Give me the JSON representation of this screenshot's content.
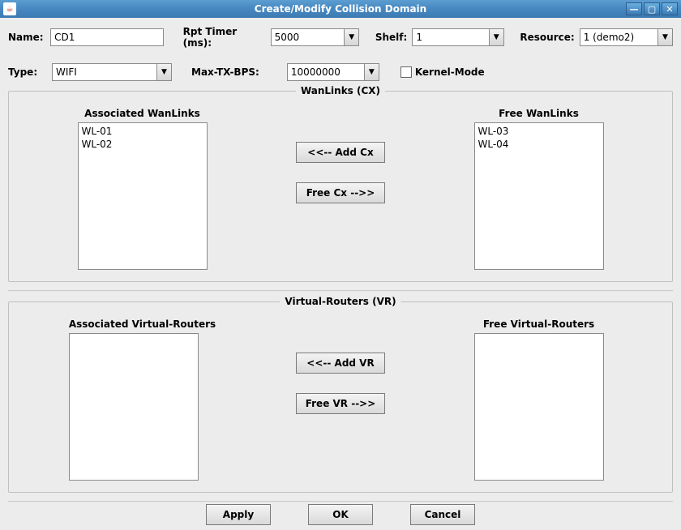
{
  "window": {
    "title": "Create/Modify Collision Domain"
  },
  "form": {
    "name_label": "Name:",
    "name_value": "CD1",
    "rpt_timer_label": "Rpt Timer (ms):",
    "rpt_timer_value": "5000",
    "shelf_label": "Shelf:",
    "shelf_value": "1",
    "resource_label": "Resource:",
    "resource_value": "1 (demo2)",
    "type_label": "Type:",
    "type_value": "WIFI",
    "maxtx_label": "Max-TX-BPS:",
    "maxtx_value": "10000000",
    "kernel_label": "Kernel-Mode",
    "kernel_checked": false
  },
  "wanlinks": {
    "panel_title": "WanLinks (CX)",
    "assoc_label": "Associated WanLinks",
    "free_label": "Free WanLinks",
    "assoc_items": [
      "WL-01",
      "WL-02"
    ],
    "free_items": [
      "WL-03",
      "WL-04"
    ],
    "add_btn": "<<--  Add Cx",
    "free_btn": "Free Cx -->>"
  },
  "vr": {
    "panel_title": "Virtual-Routers (VR)",
    "assoc_label": "Associated Virtual-Routers",
    "free_label": "Free Virtual-Routers",
    "assoc_items": [],
    "free_items": [],
    "add_btn": "<<--  Add VR",
    "free_btn": "Free VR -->>"
  },
  "footer": {
    "apply": "Apply",
    "ok": "OK",
    "cancel": "Cancel"
  },
  "colors": {
    "titlebar_start": "#5c9ed1",
    "titlebar_end": "#3b79b2",
    "panel_bg": "#ececec",
    "border": "#8a8a8a"
  }
}
